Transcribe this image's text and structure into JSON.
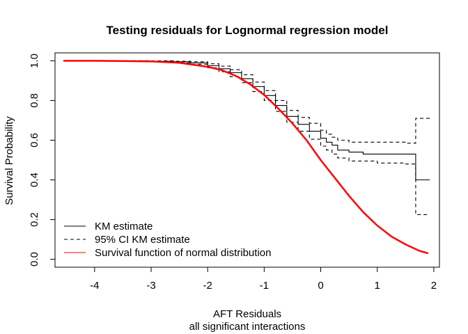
{
  "chart_data": {
    "type": "line",
    "title": "Testing residuals for Lognormal regression model",
    "xlabel": "AFT Residuals",
    "xlabel_sub": "all significant interactions",
    "ylabel": "Survival Probability",
    "xlim": [
      -4.7,
      2.1
    ],
    "ylim": [
      -0.04,
      1.04
    ],
    "x_ticks": [
      -4,
      -3,
      -2,
      -1,
      0,
      1,
      2
    ],
    "x_tick_labels": [
      "-4",
      "-3",
      "-2",
      "-1",
      "0",
      "1",
      "2"
    ],
    "y_ticks": [
      0.0,
      0.2,
      0.4,
      0.6,
      0.8,
      1.0
    ],
    "y_tick_labels": [
      "0.0",
      "0.2",
      "0.4",
      "0.6",
      "0.8",
      "1.0"
    ],
    "grid": false,
    "legend_position": "bottom-left",
    "legend": [
      {
        "label": "KM estimate",
        "color": "#000000",
        "dash": "solid"
      },
      {
        "label": "95% CI KM estimate",
        "color": "#000000",
        "dash": "dashed"
      },
      {
        "label": "Survival function of normal distribution",
        "color": "#ff0000",
        "dash": "solid"
      }
    ],
    "series": [
      {
        "name": "KM estimate",
        "step": true,
        "color": "#000000",
        "x": [
          -4.55,
          -3.0,
          -2.6,
          -2.3,
          -2.0,
          -1.8,
          -1.6,
          -1.4,
          -1.2,
          -1.0,
          -0.8,
          -0.6,
          -0.4,
          -0.2,
          0.0,
          0.1,
          0.2,
          0.3,
          0.5,
          0.75,
          1.0,
          1.5,
          1.68,
          1.68,
          1.93
        ],
        "y": [
          1.0,
          0.998,
          0.995,
          0.99,
          0.975,
          0.96,
          0.94,
          0.91,
          0.87,
          0.825,
          0.775,
          0.72,
          0.68,
          0.645,
          0.61,
          0.59,
          0.575,
          0.55,
          0.54,
          0.53,
          0.53,
          0.53,
          0.53,
          0.4,
          0.4
        ]
      },
      {
        "name": "95% CI KM estimate upper",
        "step": true,
        "color": "#000000",
        "dash": "dashed",
        "x": [
          -4.55,
          -3.0,
          -2.6,
          -2.3,
          -2.0,
          -1.8,
          -1.6,
          -1.4,
          -1.2,
          -1.0,
          -0.8,
          -0.6,
          -0.4,
          -0.2,
          0.0,
          0.1,
          0.2,
          0.3,
          0.5,
          1.0,
          1.5,
          1.68,
          1.68,
          1.93
        ],
        "y": [
          1.0,
          1.0,
          0.998,
          0.995,
          0.985,
          0.973,
          0.955,
          0.93,
          0.893,
          0.85,
          0.8,
          0.75,
          0.715,
          0.685,
          0.65,
          0.63,
          0.615,
          0.6,
          0.59,
          0.59,
          0.585,
          0.585,
          0.71,
          0.71
        ]
      },
      {
        "name": "95% CI KM estimate lower",
        "step": true,
        "color": "#000000",
        "dash": "dashed",
        "x": [
          -4.55,
          -3.0,
          -2.6,
          -2.3,
          -2.0,
          -1.8,
          -1.6,
          -1.4,
          -1.2,
          -1.0,
          -0.8,
          -0.6,
          -0.4,
          -0.2,
          0.0,
          0.1,
          0.2,
          0.3,
          0.5,
          1.0,
          1.5,
          1.68,
          1.68,
          1.93
        ],
        "y": [
          1.0,
          0.995,
          0.99,
          0.983,
          0.965,
          0.945,
          0.92,
          0.89,
          0.845,
          0.8,
          0.745,
          0.69,
          0.645,
          0.605,
          0.57,
          0.55,
          0.53,
          0.51,
          0.495,
          0.485,
          0.48,
          0.48,
          0.225,
          0.225
        ]
      },
      {
        "name": "Survival function of normal distribution",
        "step": false,
        "color": "#ff0000",
        "x": [
          -4.55,
          -4.0,
          -3.5,
          -3.0,
          -2.5,
          -2.0,
          -1.75,
          -1.5,
          -1.25,
          -1.0,
          -0.75,
          -0.5,
          -0.25,
          0.0,
          0.25,
          0.5,
          0.75,
          1.0,
          1.25,
          1.5,
          1.75,
          1.9
        ],
        "y": [
          1.0,
          1.0,
          0.999,
          0.997,
          0.99,
          0.97,
          0.953,
          0.924,
          0.882,
          0.828,
          0.76,
          0.685,
          0.6,
          0.5,
          0.41,
          0.32,
          0.238,
          0.17,
          0.115,
          0.075,
          0.042,
          0.03
        ]
      }
    ]
  }
}
